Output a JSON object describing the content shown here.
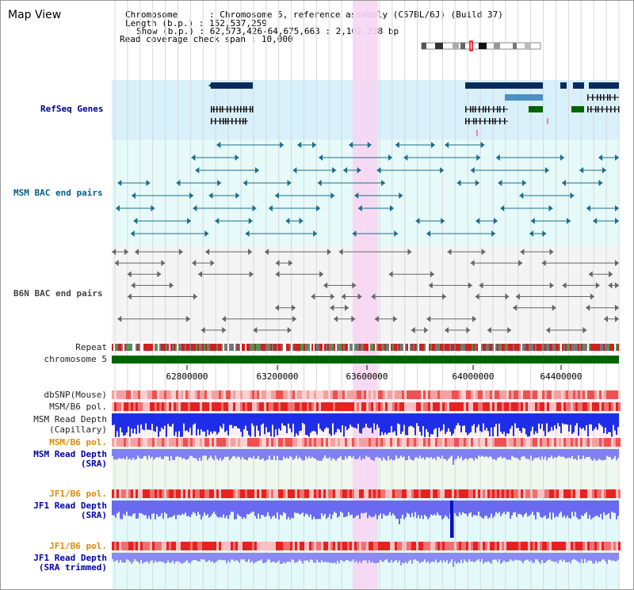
{
  "title": "Map View",
  "info": {
    "chromosome_key": "Chromosome",
    "chromosome_val": "Chromosome 5, reference assembly (C57BL/6J) (Build 37)",
    "length_key": "Length (b.p.)",
    "length_val": "152,537,259",
    "show_key": "Show (b.p.)",
    "show_val": "62,573,426-64,675,663 : 2,102,238 bp",
    "span_key": "Read coverage check span",
    "span_val": "10,000"
  },
  "tracks": {
    "refseq": "RefSeq Genes",
    "msm_bac": "MSM BAC end pairs",
    "b6n_bac": "B6N BAC end pairs",
    "repeat": "Repeat",
    "chromosome": "chromosome 5",
    "dbsnp": "dbSNP(Mouse)",
    "msm_b6_pol": "MSM/B6 pol.",
    "msm_depth_cap_1": "MSM Read Depth",
    "msm_depth_cap_2": "(Capillary)",
    "msm_b6_pol2": "MSM/B6 pol.",
    "msm_depth_sra_1": "MSM Read Depth",
    "msm_depth_sra_2": "(SRA)",
    "jf1_b6_pol": "JF1/B6 pol.",
    "jf1_depth_sra_1": "JF1 Read Depth",
    "jf1_depth_sra_2": "(SRA)",
    "jf1_b6_pol2": "JF1/B6 pol.",
    "jf1_depth_trim_1": "JF1 Read Depth",
    "jf1_depth_trim_2": "(SRA trimmed)"
  },
  "axis": {
    "ticks": [
      "62800000",
      "63200000",
      "63600000",
      "64000000",
      "64400000"
    ]
  },
  "colors": {
    "refseq_label": "#00008b",
    "msm_label": "#005f87",
    "b6n_label": "#444444",
    "orange_label": "#e08a00",
    "blue_label": "#0000aa",
    "highlight": "#f7d6f3",
    "chrom_bar": "#006400"
  }
}
